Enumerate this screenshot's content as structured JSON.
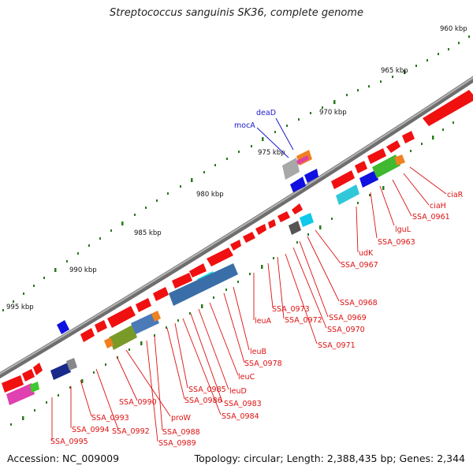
{
  "title": "Streptococcus sanguinis SK36, complete genome",
  "accession": "Accession: NC_009009",
  "topology": "Topology: circular; Length: 2,388,435 bp; Genes: 2,344",
  "colors": {
    "backbone": "#8a8a8a",
    "tick": "#2a7a1e",
    "red_label": "#dd1111",
    "blue_label": "#1a1acc",
    "gene_red": "#f01010"
  },
  "kbp_labels": [
    "960 kbp",
    "965 kbp",
    "970 kbp",
    "975 kbp",
    "980 kbp",
    "985 kbp",
    "990 kbp",
    "995 kbp"
  ],
  "gene_labels": [
    "ciaR",
    "ciaH",
    "SSA_0961",
    "lguL",
    "SSA_0963",
    "udK",
    "SSA_0967",
    "SSA_0968",
    "SSA_0969",
    "SSA_0970",
    "SSA_0971",
    "SSA_0972",
    "SSA_0973",
    "leuA",
    "leuB",
    "SSA_0978",
    "leuC",
    "leuD",
    "SSA_0983",
    "SSA_0984",
    "SSA_0985",
    "SSA_0986",
    "SSA_0988",
    "SSA_0989",
    "proW",
    "SSA_0990",
    "SSA_0992",
    "SSA_0993",
    "SSA_0994",
    "SSA_0995"
  ],
  "blue_labels": [
    "deaD",
    "mocA"
  ]
}
